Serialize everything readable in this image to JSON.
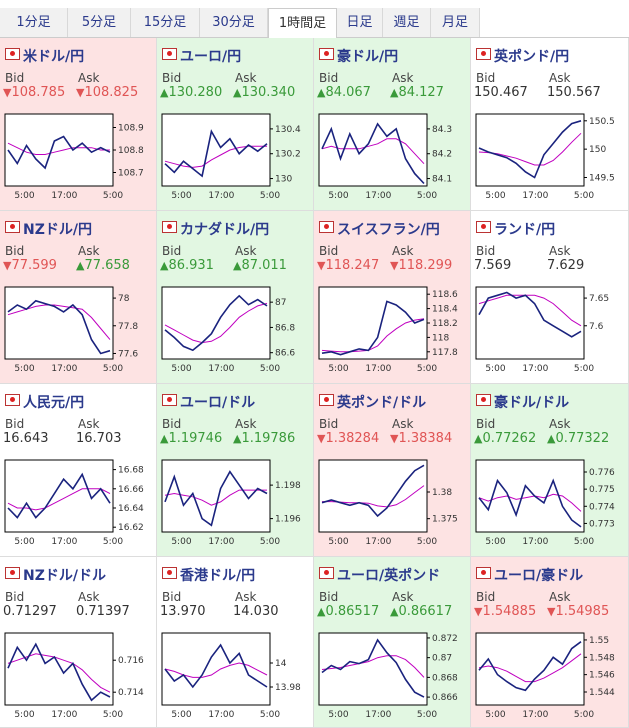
{
  "tabs": [
    "1分足",
    "5分足",
    "15分足",
    "30分足",
    "1時間足",
    "日足",
    "週足",
    "月足"
  ],
  "active_tab": 4,
  "bid_label": "Bid",
  "ask_label": "Ask",
  "xticks": [
    "5:00",
    "17:00",
    "5:00"
  ],
  "line_color": "#1a237e",
  "average_color": "#c000c0",
  "tiles": [
    {
      "name": "米ドル/円",
      "tone": "down",
      "bid": "108.785",
      "bid_dir": "down",
      "ask": "108.825",
      "ask_dir": "down",
      "chart": {
        "ylim": [
          108.64,
          108.96
        ],
        "yticks": [
          108.9,
          108.8,
          108.7
        ],
        "values": [
          108.8,
          108.74,
          108.82,
          108.76,
          108.72,
          108.84,
          108.86,
          108.8,
          108.83,
          108.79,
          108.81,
          108.79
        ],
        "average": [
          108.83,
          108.81,
          108.79,
          108.78,
          108.78,
          108.79,
          108.8,
          108.81,
          108.81,
          108.81,
          108.8,
          108.8
        ]
      }
    },
    {
      "name": "ユーロ/円",
      "tone": "up",
      "bid": "130.280",
      "bid_dir": "up",
      "ask": "130.340",
      "ask_dir": "up",
      "chart": {
        "ylim": [
          129.94,
          130.52
        ],
        "yticks": [
          130.4,
          130.2,
          130
        ],
        "values": [
          130.12,
          130.05,
          130.14,
          130.08,
          130.02,
          130.38,
          130.25,
          130.32,
          130.2,
          130.27,
          130.22,
          130.28
        ],
        "average": [
          130.14,
          130.12,
          130.1,
          130.09,
          130.1,
          130.15,
          130.19,
          130.23,
          130.25,
          130.26,
          130.26,
          130.26
        ]
      }
    },
    {
      "name": "豪ドル/円",
      "tone": "up",
      "bid": "84.067",
      "bid_dir": "up",
      "ask": "84.127",
      "ask_dir": "up",
      "chart": {
        "ylim": [
          84.07,
          84.36
        ],
        "yticks": [
          84.3,
          84.2,
          84.1
        ],
        "values": [
          84.22,
          84.3,
          84.18,
          84.28,
          84.2,
          84.24,
          84.32,
          84.27,
          84.3,
          84.18,
          84.12,
          84.08
        ],
        "average": [
          84.22,
          84.23,
          84.22,
          84.22,
          84.22,
          84.23,
          84.24,
          84.26,
          84.26,
          84.24,
          84.2,
          84.16
        ]
      }
    },
    {
      "name": "英ポンド/円",
      "tone": "none",
      "bid": "150.467",
      "bid_dir": "none",
      "ask": "150.567",
      "ask_dir": "none",
      "chart": {
        "ylim": [
          149.35,
          150.62
        ],
        "yticks": [
          150.5,
          150,
          149.5
        ],
        "values": [
          150.02,
          149.95,
          149.9,
          149.85,
          149.75,
          149.6,
          149.5,
          149.9,
          150.1,
          150.3,
          150.45,
          150.5
        ],
        "average": [
          149.95,
          149.94,
          149.92,
          149.88,
          149.84,
          149.78,
          149.72,
          149.72,
          149.8,
          149.95,
          150.12,
          150.28
        ]
      }
    },
    {
      "name": "NZドル/円",
      "tone": "down",
      "bid": "77.599",
      "bid_dir": "down",
      "ask": "77.658",
      "ask_dir": "up",
      "chart": {
        "ylim": [
          77.56,
          78.08
        ],
        "yticks": [
          78,
          77.8,
          77.6
        ],
        "values": [
          77.9,
          77.95,
          77.92,
          77.98,
          77.96,
          77.94,
          77.9,
          77.95,
          77.88,
          77.7,
          77.6,
          77.62
        ],
        "average": [
          77.88,
          77.9,
          77.92,
          77.94,
          77.95,
          77.95,
          77.94,
          77.93,
          77.92,
          77.86,
          77.78,
          77.7
        ]
      }
    },
    {
      "name": "カナダドル/円",
      "tone": "up",
      "bid": "86.931",
      "bid_dir": "up",
      "ask": "87.011",
      "ask_dir": "up",
      "chart": {
        "ylim": [
          86.55,
          87.12
        ],
        "yticks": [
          87,
          86.8,
          86.6
        ],
        "values": [
          86.78,
          86.72,
          86.65,
          86.62,
          86.68,
          86.75,
          86.88,
          86.98,
          87.05,
          86.98,
          87.02,
          86.97
        ],
        "average": [
          86.82,
          86.78,
          86.74,
          86.7,
          86.68,
          86.69,
          86.73,
          86.8,
          86.88,
          86.93,
          86.97,
          86.99
        ]
      }
    },
    {
      "name": "スイスフラン/円",
      "tone": "down",
      "bid": "118.247",
      "bid_dir": "down",
      "ask": "118.299",
      "ask_dir": "down",
      "chart": {
        "ylim": [
          117.7,
          118.7
        ],
        "yticks": [
          118.6,
          118.4,
          118.2,
          118,
          117.8
        ],
        "values": [
          117.78,
          117.8,
          117.76,
          117.8,
          117.84,
          117.82,
          118.0,
          118.5,
          118.45,
          118.35,
          118.2,
          118.25
        ],
        "average": [
          117.82,
          117.81,
          117.8,
          117.8,
          117.81,
          117.82,
          117.88,
          118.02,
          118.12,
          118.2,
          118.24,
          118.26
        ]
      }
    },
    {
      "name": "ランド/円",
      "tone": "none",
      "bid": "7.569",
      "bid_dir": "none",
      "ask": "7.629",
      "ask_dir": "none",
      "chart": {
        "ylim": [
          7.54,
          7.67
        ],
        "yticks": [
          7.65,
          7.6
        ],
        "values": [
          7.62,
          7.65,
          7.655,
          7.66,
          7.65,
          7.655,
          7.64,
          7.61,
          7.6,
          7.59,
          7.58,
          7.59
        ],
        "average": [
          7.64,
          7.645,
          7.65,
          7.655,
          7.655,
          7.655,
          7.655,
          7.65,
          7.64,
          7.625,
          7.61,
          7.6
        ]
      }
    },
    {
      "name": "人民元/円",
      "tone": "none",
      "bid": "16.643",
      "bid_dir": "none",
      "ask": "16.703",
      "ask_dir": "none",
      "chart": {
        "ylim": [
          16.615,
          16.69
        ],
        "yticks": [
          16.68,
          16.66,
          16.64,
          16.62
        ],
        "values": [
          16.64,
          16.63,
          16.645,
          16.63,
          16.64,
          16.655,
          16.67,
          16.66,
          16.675,
          16.65,
          16.66,
          16.645
        ],
        "average": [
          16.645,
          16.64,
          16.64,
          16.638,
          16.64,
          16.645,
          16.65,
          16.655,
          16.66,
          16.66,
          16.66,
          16.655
        ]
      }
    },
    {
      "name": "ユーロ/ドル",
      "tone": "up",
      "bid": "1.19746",
      "bid_dir": "up",
      "ask": "1.19786",
      "ask_dir": "up",
      "chart": {
        "ylim": [
          1.1952,
          1.1995
        ],
        "yticks": [
          1.198,
          1.196
        ],
        "values": [
          1.197,
          1.1985,
          1.1968,
          1.1975,
          1.196,
          1.1956,
          1.1978,
          1.1988,
          1.198,
          1.1972,
          1.1978,
          1.1975
        ],
        "average": [
          1.1974,
          1.1975,
          1.1974,
          1.1973,
          1.1971,
          1.1968,
          1.197,
          1.1974,
          1.1977,
          1.1977,
          1.1977,
          1.1977
        ]
      }
    },
    {
      "name": "英ポンド/ドル",
      "tone": "down",
      "bid": "1.38284",
      "bid_dir": "down",
      "ask": "1.38384",
      "ask_dir": "down",
      "chart": {
        "ylim": [
          1.3725,
          1.386
        ],
        "yticks": [
          1.38,
          1.375
        ],
        "values": [
          1.378,
          1.3785,
          1.378,
          1.3775,
          1.378,
          1.3775,
          1.3755,
          1.377,
          1.3795,
          1.382,
          1.384,
          1.385
        ],
        "average": [
          1.3782,
          1.3782,
          1.3781,
          1.378,
          1.378,
          1.3779,
          1.3774,
          1.3772,
          1.3776,
          1.3786,
          1.3799,
          1.3812
        ]
      }
    },
    {
      "name": "豪ドル/ドル",
      "tone": "up",
      "bid": "0.77262",
      "bid_dir": "up",
      "ask": "0.77322",
      "ask_dir": "up",
      "chart": {
        "ylim": [
          0.7725,
          0.7767
        ],
        "yticks": [
          0.776,
          0.775,
          0.774,
          0.773
        ],
        "values": [
          0.7745,
          0.7738,
          0.7755,
          0.7748,
          0.7735,
          0.7752,
          0.7746,
          0.7742,
          0.7755,
          0.774,
          0.7732,
          0.7728
        ],
        "average": [
          0.7745,
          0.7743,
          0.7745,
          0.7746,
          0.7744,
          0.7745,
          0.7746,
          0.7745,
          0.7747,
          0.7746,
          0.7742,
          0.7737
        ]
      }
    },
    {
      "name": "NZドル/ドル",
      "tone": "none",
      "bid": "0.71297",
      "bid_dir": "none",
      "ask": "0.71397",
      "ask_dir": "none",
      "chart": {
        "ylim": [
          0.7132,
          0.7177
        ],
        "yticks": [
          0.716,
          0.714
        ],
        "values": [
          0.7155,
          0.7168,
          0.716,
          0.717,
          0.7158,
          0.7162,
          0.7152,
          0.7158,
          0.7145,
          0.7135,
          0.714,
          0.7137
        ],
        "average": [
          0.7158,
          0.716,
          0.7162,
          0.7164,
          0.7163,
          0.7162,
          0.716,
          0.7158,
          0.7154,
          0.7148,
          0.7143,
          0.714
        ]
      }
    },
    {
      "name": "香港ドル/円",
      "tone": "none",
      "bid": "13.970",
      "bid_dir": "none",
      "ask": "14.030",
      "ask_dir": "none",
      "chart": {
        "ylim": [
          13.965,
          14.025
        ],
        "yticks": [
          14,
          13.98
        ],
        "values": [
          13.995,
          13.985,
          13.99,
          13.98,
          13.99,
          14.005,
          14.015,
          14.0,
          14.008,
          13.99,
          13.985,
          13.98
        ],
        "average": [
          13.995,
          13.993,
          13.99,
          13.988,
          13.988,
          13.99,
          13.995,
          13.998,
          14.0,
          13.998,
          13.994,
          13.99
        ]
      }
    },
    {
      "name": "ユーロ/英ポンド",
      "tone": "up",
      "bid": "0.86517",
      "bid_dir": "up",
      "ask": "0.86617",
      "ask_dir": "up",
      "chart": {
        "ylim": [
          0.8652,
          0.8725
        ],
        "yticks": [
          0.872,
          0.87,
          0.868,
          0.866
        ],
        "values": [
          0.8685,
          0.8692,
          0.8688,
          0.8696,
          0.8694,
          0.8698,
          0.8718,
          0.8705,
          0.8695,
          0.8678,
          0.8665,
          0.866
        ],
        "average": [
          0.8688,
          0.8689,
          0.869,
          0.8692,
          0.8694,
          0.8696,
          0.87,
          0.8702,
          0.8702,
          0.8698,
          0.869,
          0.868
        ]
      }
    },
    {
      "name": "ユーロ/豪ドル",
      "tone": "down",
      "bid": "1.54885",
      "bid_dir": "down",
      "ask": "1.54985",
      "ask_dir": "down",
      "chart": {
        "ylim": [
          1.5425,
          1.5508
        ],
        "yticks": [
          1.55,
          1.548,
          1.546,
          1.544
        ],
        "values": [
          1.5465,
          1.5478,
          1.546,
          1.5452,
          1.5445,
          1.5442,
          1.5455,
          1.5465,
          1.548,
          1.5472,
          1.549,
          1.5498
        ],
        "average": [
          1.5468,
          1.547,
          1.5468,
          1.5464,
          1.5458,
          1.5452,
          1.5452,
          1.5456,
          1.5462,
          1.5468,
          1.5476,
          1.5484
        ]
      }
    }
  ]
}
